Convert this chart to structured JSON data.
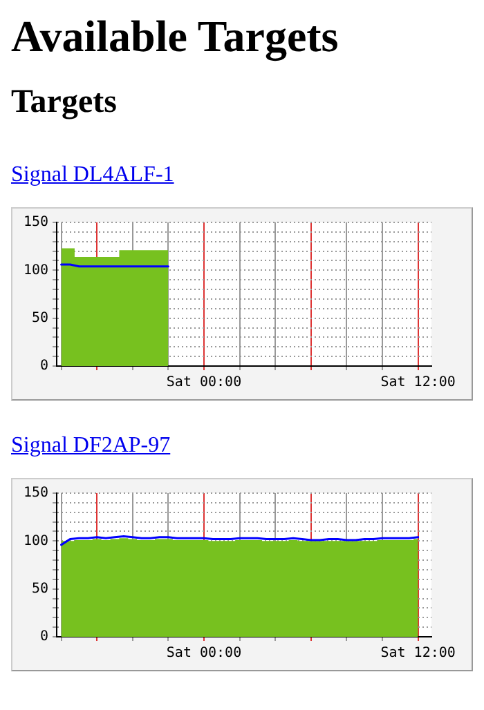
{
  "chart_data": [
    {
      "type": "other",
      "title": "Available Targets",
      "subtitle": "Targets"
    },
    {
      "type": "area",
      "title": "Signal DL4ALF-1",
      "ylim": [
        0,
        150
      ],
      "categories": [
        null,
        null,
        null,
        null,
        null,
        null,
        null,
        null,
        null,
        null,
        null,
        null,
        null,
        null,
        null,
        null,
        "Sat 00:00",
        null,
        null,
        null,
        null,
        null,
        null,
        null,
        null,
        null,
        null,
        null,
        null,
        null,
        null,
        null,
        null,
        null,
        null,
        null,
        null,
        null,
        null,
        null,
        "Sat 12:00",
        null
      ],
      "yticks": [
        0,
        {
          "value": 10,
          "label": null
        },
        {
          "value": 20,
          "label": null
        },
        {
          "value": 30,
          "label": null
        },
        {
          "value": 40,
          "label": null
        },
        50,
        {
          "value": 60,
          "label": null
        },
        {
          "value": 70,
          "label": null
        },
        {
          "value": 80,
          "label": null
        },
        {
          "value": 90,
          "label": null
        },
        100,
        {
          "value": 110,
          "label": null
        },
        {
          "value": 120,
          "label": null
        },
        {
          "value": 130,
          "label": null
        },
        {
          "value": 140,
          "label": null
        },
        150
      ],
      "grid": true,
      "legend": false,
      "series": [
        {
          "type": "area",
          "color": "#77c11f",
          "values": [
            123,
            123,
            114,
            114,
            114,
            114,
            114,
            121,
            121,
            121,
            121,
            121,
            121,
            null,
            null,
            null,
            null,
            null,
            null,
            null,
            null,
            null,
            null,
            null,
            null,
            null,
            null,
            null,
            null,
            null,
            null,
            null,
            null,
            null,
            null,
            null,
            null,
            null,
            null,
            null,
            null,
            null
          ]
        },
        {
          "type": "line",
          "color": "#0000ff",
          "values": [
            106,
            106,
            104,
            104,
            104,
            104,
            104,
            104,
            104,
            104,
            104,
            104,
            104,
            null,
            null,
            null,
            null,
            null,
            null,
            null,
            null,
            null,
            null,
            null,
            null,
            null,
            null,
            null,
            null,
            null,
            null,
            null,
            null,
            null,
            null,
            null,
            null,
            null,
            null,
            null,
            null,
            null
          ]
        }
      ]
    },
    {
      "type": "area",
      "title": "Signal DF2AP-97",
      "ylim": [
        0,
        150
      ],
      "categories": [
        null,
        null,
        null,
        null,
        null,
        null,
        null,
        null,
        null,
        null,
        null,
        null,
        null,
        null,
        null,
        null,
        "Sat 00:00",
        null,
        null,
        null,
        null,
        null,
        null,
        null,
        null,
        null,
        null,
        null,
        null,
        null,
        null,
        null,
        null,
        null,
        null,
        null,
        null,
        null,
        null,
        null,
        "Sat 12:00",
        null
      ],
      "yticks": [
        0,
        {
          "value": 10,
          "label": null
        },
        {
          "value": 20,
          "label": null
        },
        {
          "value": 30,
          "label": null
        },
        {
          "value": 40,
          "label": null
        },
        50,
        {
          "value": 60,
          "label": null
        },
        {
          "value": 70,
          "label": null
        },
        {
          "value": 80,
          "label": null
        },
        {
          "value": 90,
          "label": null
        },
        100,
        {
          "value": 110,
          "label": null
        },
        {
          "value": 120,
          "label": null
        },
        {
          "value": 130,
          "label": null
        },
        {
          "value": 140,
          "label": null
        },
        150
      ],
      "grid": true,
      "legend": false,
      "series": [
        {
          "type": "area",
          "color": "#77c11f",
          "values": [
            100,
            100,
            101,
            101,
            102,
            101,
            102,
            103,
            102,
            101,
            101,
            102,
            102,
            101,
            101,
            101,
            101,
            100,
            100,
            100,
            101,
            101,
            101,
            100,
            100,
            100,
            101,
            100,
            100,
            100,
            100,
            100,
            100,
            100,
            100,
            100,
            101,
            101,
            101,
            101,
            102,
            null
          ]
        },
        {
          "type": "line",
          "color": "#0000ff",
          "values": [
            96,
            102,
            103,
            103,
            104,
            103,
            104,
            105,
            104,
            103,
            103,
            104,
            104,
            103,
            103,
            103,
            103,
            102,
            102,
            102,
            103,
            103,
            103,
            102,
            102,
            102,
            103,
            102,
            101,
            101,
            102,
            102,
            101,
            101,
            102,
            102,
            103,
            103,
            103,
            103,
            104,
            null
          ]
        }
      ]
    }
  ]
}
